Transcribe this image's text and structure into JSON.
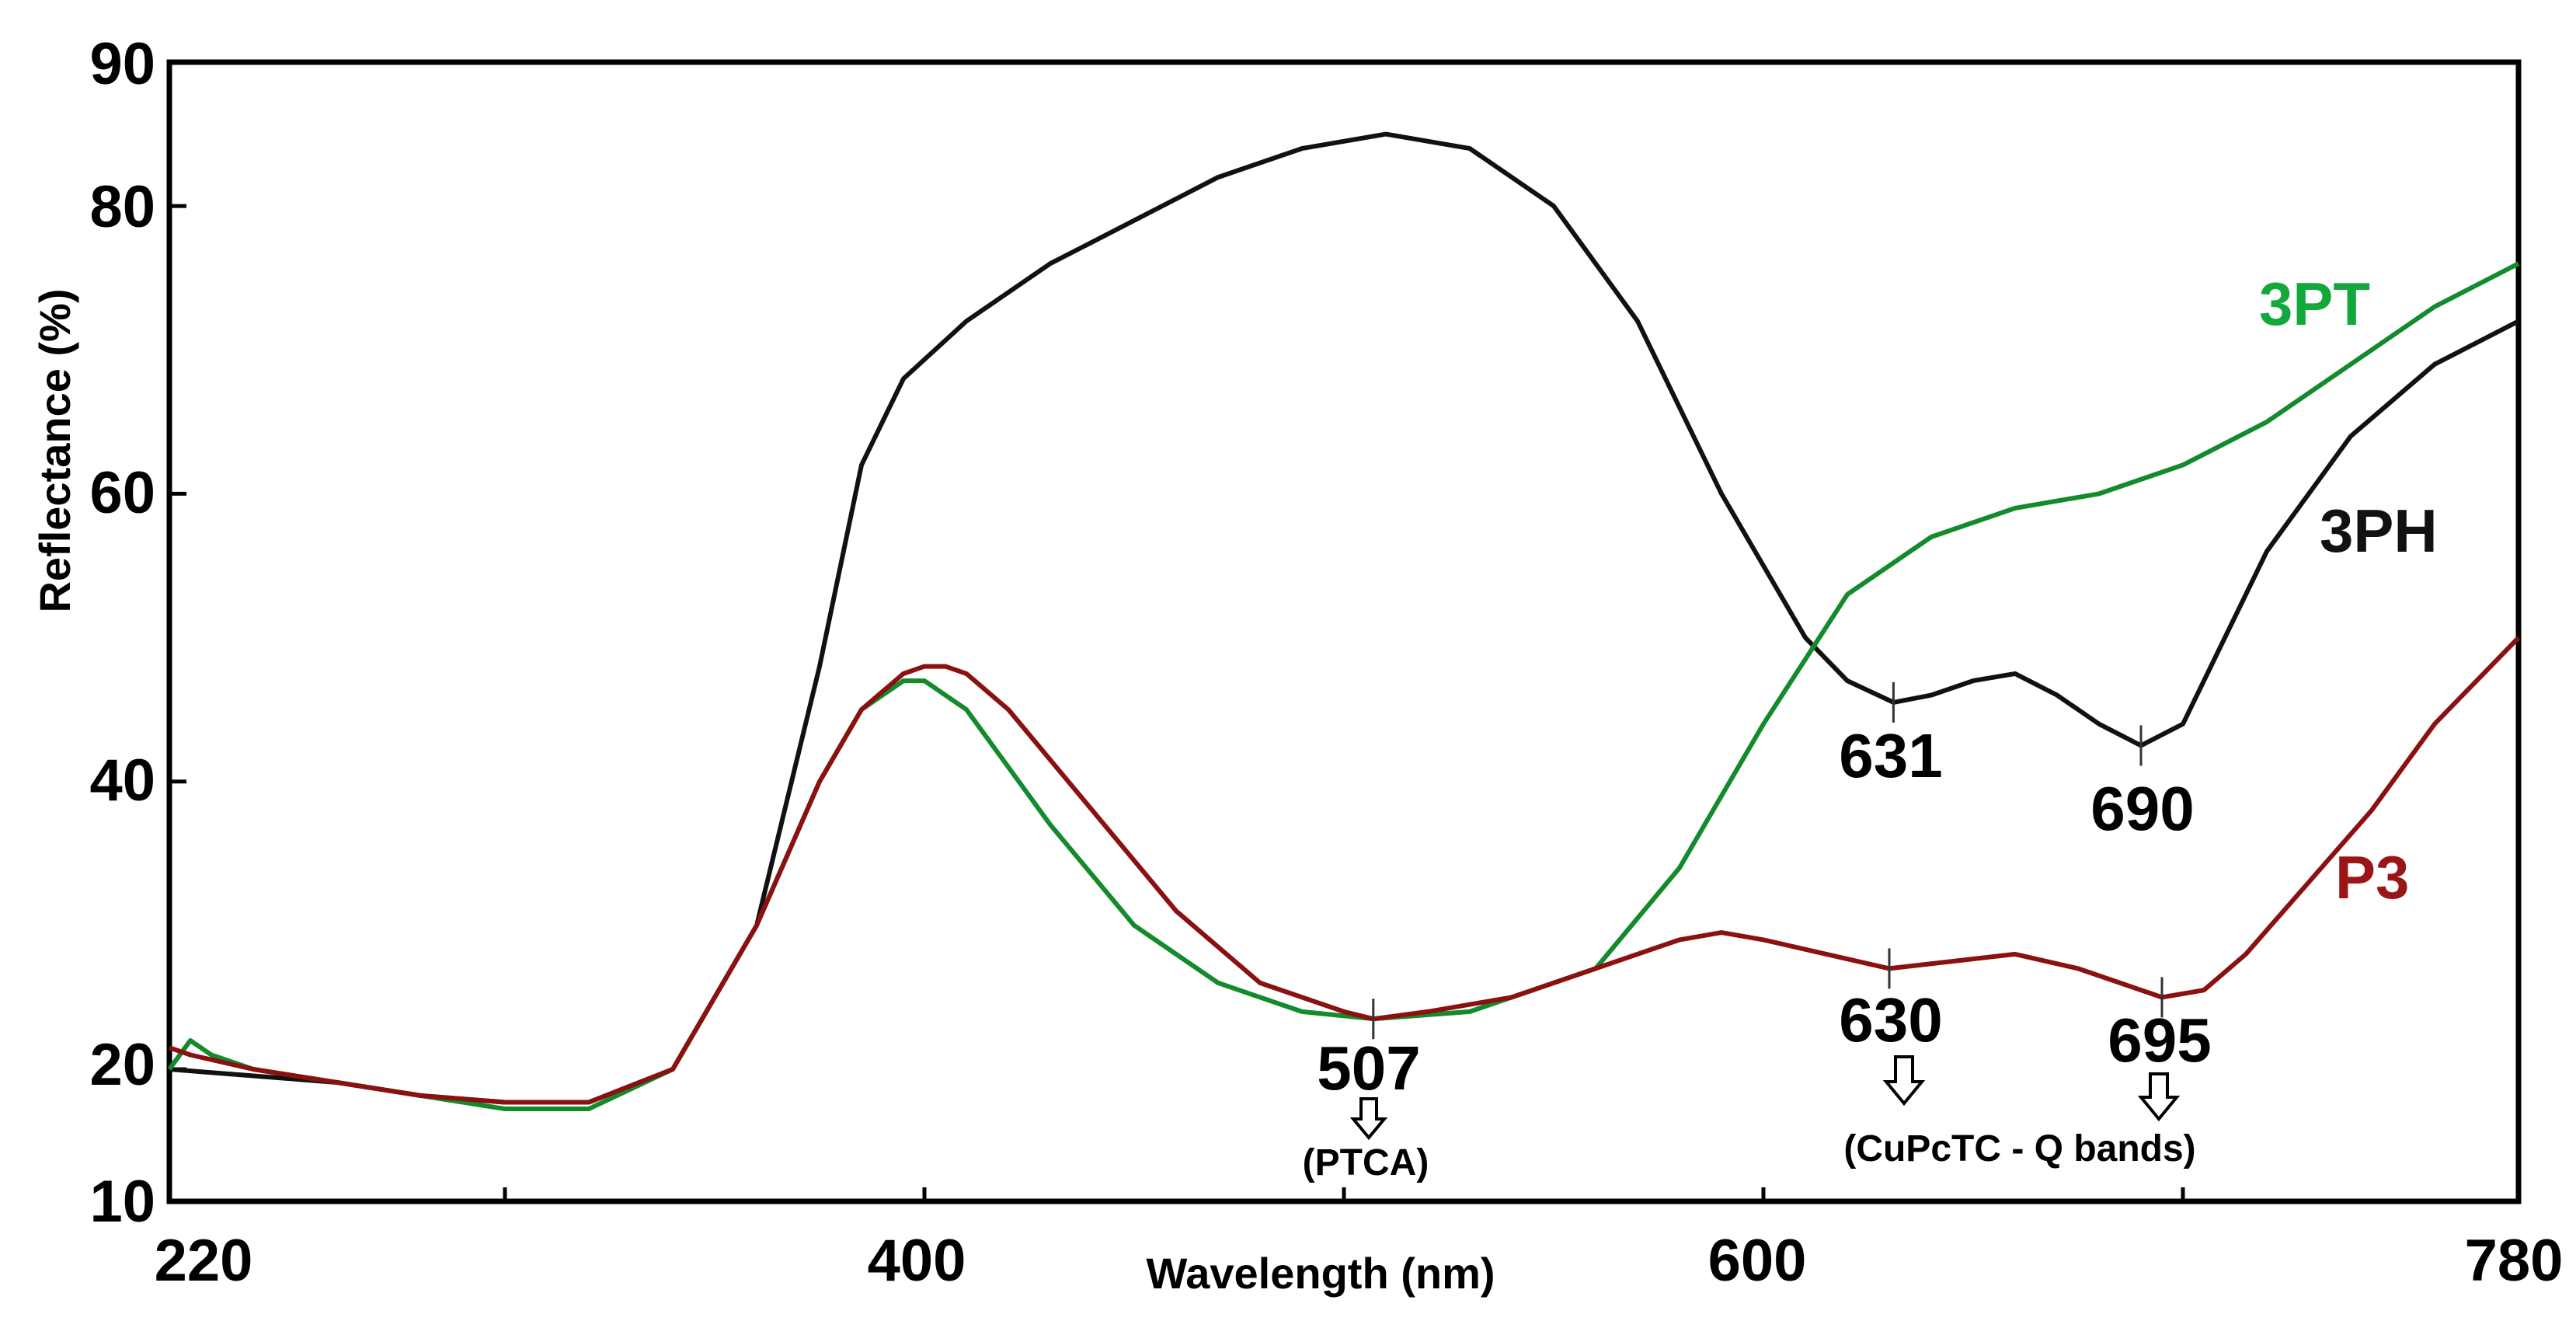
{
  "chart_data": {
    "type": "line",
    "title": "",
    "xlabel": "Wavelength (nm)",
    "ylabel": "Reflectance (%)",
    "xlim": [
      220,
      780
    ],
    "ylim": [
      10,
      90
    ],
    "x_tick_labels": [
      "220",
      "400",
      "600",
      "780"
    ],
    "y_tick_labels": [
      "90",
      "80",
      "60",
      "40",
      "20",
      "10"
    ],
    "grid": false,
    "colors": {
      "3PH": "#111111",
      "3PT": "#138a2b",
      "P3": "#8b1010",
      "3PT_label": "#12a83c",
      "P3_label": "#9a1418"
    },
    "series": [
      {
        "name": "3PH",
        "x": [
          220,
          240,
          260,
          280,
          300,
          320,
          340,
          360,
          375,
          385,
          395,
          410,
          430,
          450,
          470,
          490,
          510,
          530,
          550,
          570,
          590,
          610,
          620,
          631,
          640,
          650,
          660,
          670,
          680,
          690,
          700,
          710,
          720,
          740,
          760,
          780
        ],
        "y": [
          20,
          19.5,
          19,
          18,
          17.5,
          17.5,
          20,
          30,
          48,
          62,
          68,
          72,
          76,
          79,
          82,
          84,
          85,
          84,
          80,
          72,
          60,
          50,
          47,
          45.5,
          46,
          47,
          47.5,
          46,
          44,
          42.5,
          44,
          50,
          56,
          64,
          69,
          72
        ]
      },
      {
        "name": "3PT",
        "x": [
          220,
          225,
          230,
          240,
          260,
          280,
          300,
          320,
          340,
          360,
          375,
          385,
          395,
          400,
          410,
          430,
          450,
          470,
          490,
          507,
          530,
          560,
          580,
          600,
          620,
          640,
          660,
          680,
          700,
          720,
          740,
          760,
          780
        ],
        "y": [
          20,
          22,
          21,
          20,
          19,
          18,
          17,
          17,
          20,
          30,
          40,
          45,
          47,
          47,
          45,
          37,
          30,
          26,
          24,
          23.5,
          24,
          27,
          34,
          44,
          53,
          57,
          59,
          60,
          62,
          65,
          69,
          73,
          76
        ]
      },
      {
        "name": "P3",
        "x": [
          220,
          225,
          240,
          260,
          280,
          300,
          320,
          340,
          360,
          375,
          385,
          395,
          400,
          405,
          410,
          420,
          440,
          460,
          480,
          500,
          507,
          520,
          540,
          560,
          580,
          590,
          600,
          615,
          630,
          645,
          660,
          675,
          685,
          695,
          705,
          715,
          730,
          745,
          760,
          780
        ],
        "y": [
          21.5,
          21,
          20,
          19,
          18,
          17.5,
          17.5,
          20,
          30,
          40,
          45,
          47.5,
          48,
          48,
          47.5,
          45,
          38,
          31,
          26,
          24,
          23.5,
          24,
          25,
          27,
          29,
          29.5,
          29,
          28,
          27,
          27.5,
          28,
          27,
          26,
          25,
          25.5,
          28,
          33,
          38,
          44,
          50
        ]
      }
    ],
    "annotations": [
      {
        "text": "631",
        "x": 631,
        "y": 45.5
      },
      {
        "text": "690",
        "x": 690,
        "y": 42.5
      },
      {
        "text": "507",
        "x": 507,
        "y": 23.5
      },
      {
        "text": "630",
        "x": 630,
        "y": 27
      },
      {
        "text": "695",
        "x": 695,
        "y": 25
      }
    ],
    "notes": [
      "(PTCA)",
      "(CuPcTC - Q bands)"
    ],
    "series_labels": [
      "3PT",
      "3PH",
      "P3"
    ]
  }
}
